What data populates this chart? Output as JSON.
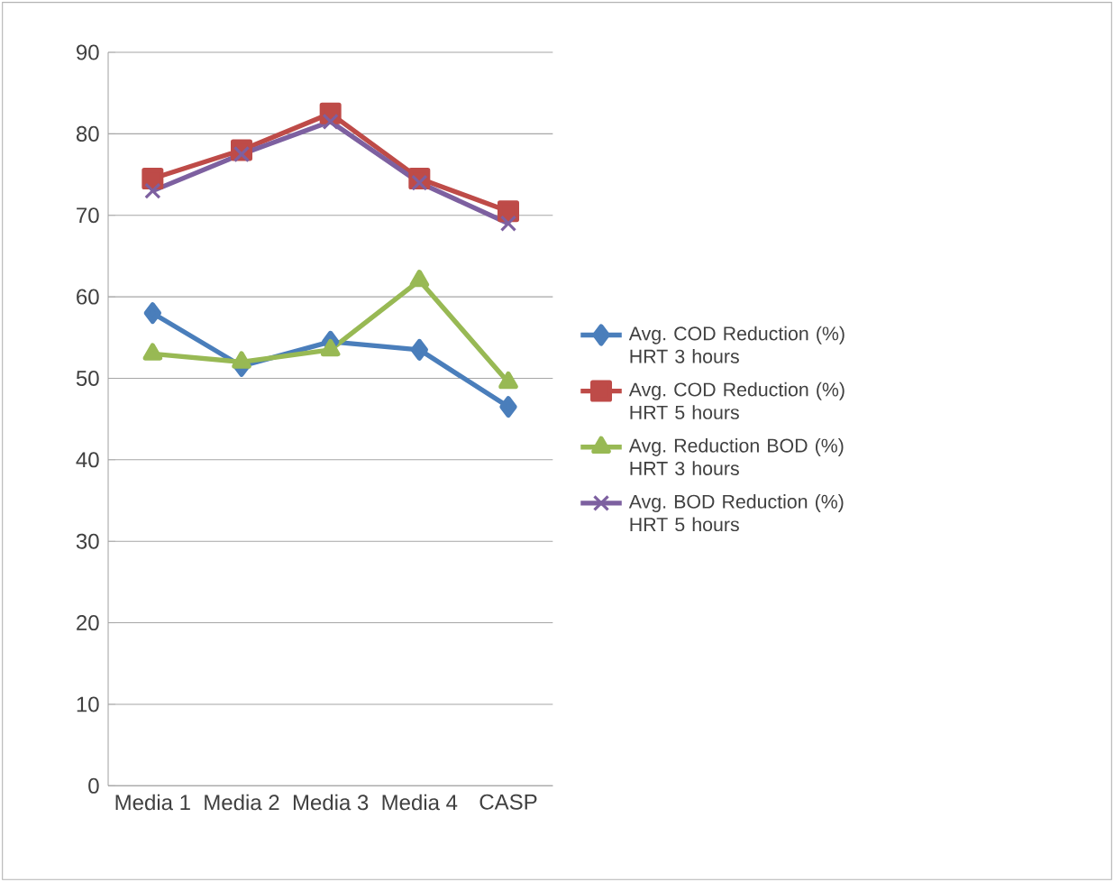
{
  "chart_data": {
    "type": "line",
    "categories": [
      "Media 1",
      "Media 2",
      "Media 3",
      "Media 4",
      "CASP"
    ],
    "ylim": [
      0,
      90
    ],
    "yticks": [
      0,
      10,
      20,
      30,
      40,
      50,
      60,
      70,
      80,
      90
    ],
    "grid": "y",
    "legend": "right",
    "series": [
      {
        "name": "Avg. COD Reduction (%) HRT 3 hours",
        "color": "#4a7ebb",
        "marker": "diamond",
        "values": [
          58,
          51.5,
          54.5,
          53.5,
          46.5
        ]
      },
      {
        "name": "Avg. COD Reduction (%) HRT 5 hours",
        "color": "#be4b48",
        "marker": "square",
        "values": [
          74.5,
          78,
          82.5,
          74.5,
          70.5
        ]
      },
      {
        "name": "Avg. Reduction BOD (%) HRT 3 hours",
        "color": "#98b954",
        "marker": "triangle",
        "values": [
          53,
          52,
          53.5,
          62,
          49.5
        ]
      },
      {
        "name": "Avg. BOD Reduction (%) HRT 5 hours",
        "color": "#7d60a0",
        "marker": "cross",
        "values": [
          73,
          77.5,
          81.5,
          74,
          69
        ]
      }
    ]
  }
}
